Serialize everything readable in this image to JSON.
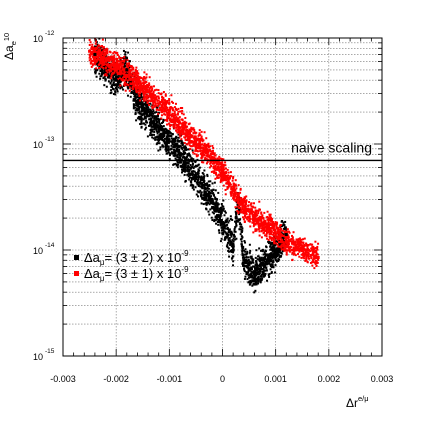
{
  "chart_data": {
    "type": "scatter",
    "title": "",
    "xlabel": {
      "base": "Δr",
      "sup": "e/μ"
    },
    "ylabel": {
      "base": "Δa",
      "sub": "e",
      "sup": "10"
    },
    "xlim": [
      -0.003,
      0.003
    ],
    "ylim": [
      1e-15,
      1e-12
    ],
    "yscale": "log",
    "grid": true,
    "x_ticks": [
      "-0.003",
      "-0.002",
      "-0.001",
      "0",
      "0.001",
      "0.002",
      "0.003"
    ],
    "y_ticks": [
      {
        "base": "10",
        "exp": "-12"
      },
      {
        "base": "10",
        "exp": "-13"
      },
      {
        "base": "10",
        "exp": "-14"
      },
      {
        "base": "10",
        "exp": "-15"
      }
    ],
    "reference_line": {
      "label": "naive scaling",
      "y": 7e-14
    },
    "legend_position": "left",
    "series": [
      {
        "name": "Δaμ = (3 ± 2) x 10^-9",
        "legend": {
          "pre": "Δa",
          "sub": "μ",
          "mid": "= (3 ± 2) x 10",
          "sup": "-9"
        },
        "color": "#000000",
        "points": [
          [
            -0.0024,
            7e-13
          ],
          [
            -0.002,
            4e-13
          ],
          [
            -0.0016,
            2.5e-13
          ],
          [
            -0.0012,
            1.4e-13
          ],
          [
            -0.0008,
            8e-14
          ],
          [
            -0.0005,
            5e-14
          ],
          [
            -0.0002,
            3e-14
          ],
          [
            0.0,
            1.8e-14
          ],
          [
            0.0002,
            1.1e-14
          ],
          [
            0.0004,
            8e-15
          ],
          [
            0.0006,
            6e-15
          ],
          [
            0.001,
            1e-14
          ],
          [
            0.0012,
            1.4e-14
          ],
          [
            -0.0018,
            5e-13
          ],
          [
            0.0003,
            3e-14
          ]
        ]
      },
      {
        "name": "Δaμ = (3 ± 1) x 10^-9",
        "legend": {
          "pre": "Δa",
          "sub": "μ",
          "mid": "= (3 ± 1) x 10",
          "sup": "-9"
        },
        "color": "#ff0000",
        "points": [
          [
            -0.0025,
            7.5e-13
          ],
          [
            -0.002,
            5.5e-13
          ],
          [
            -0.0015,
            3.5e-13
          ],
          [
            -0.001,
            2e-13
          ],
          [
            -0.0006,
            1.2e-13
          ],
          [
            -0.0003,
            8.5e-14
          ],
          [
            0.0,
            5.5e-14
          ],
          [
            0.0003,
            3e-14
          ],
          [
            0.0006,
            2e-14
          ],
          [
            0.0009,
            1.6e-14
          ],
          [
            0.0012,
            1.2e-14
          ],
          [
            0.0015,
            1e-14
          ],
          [
            0.0018,
            8.5e-15
          ]
        ]
      }
    ]
  }
}
